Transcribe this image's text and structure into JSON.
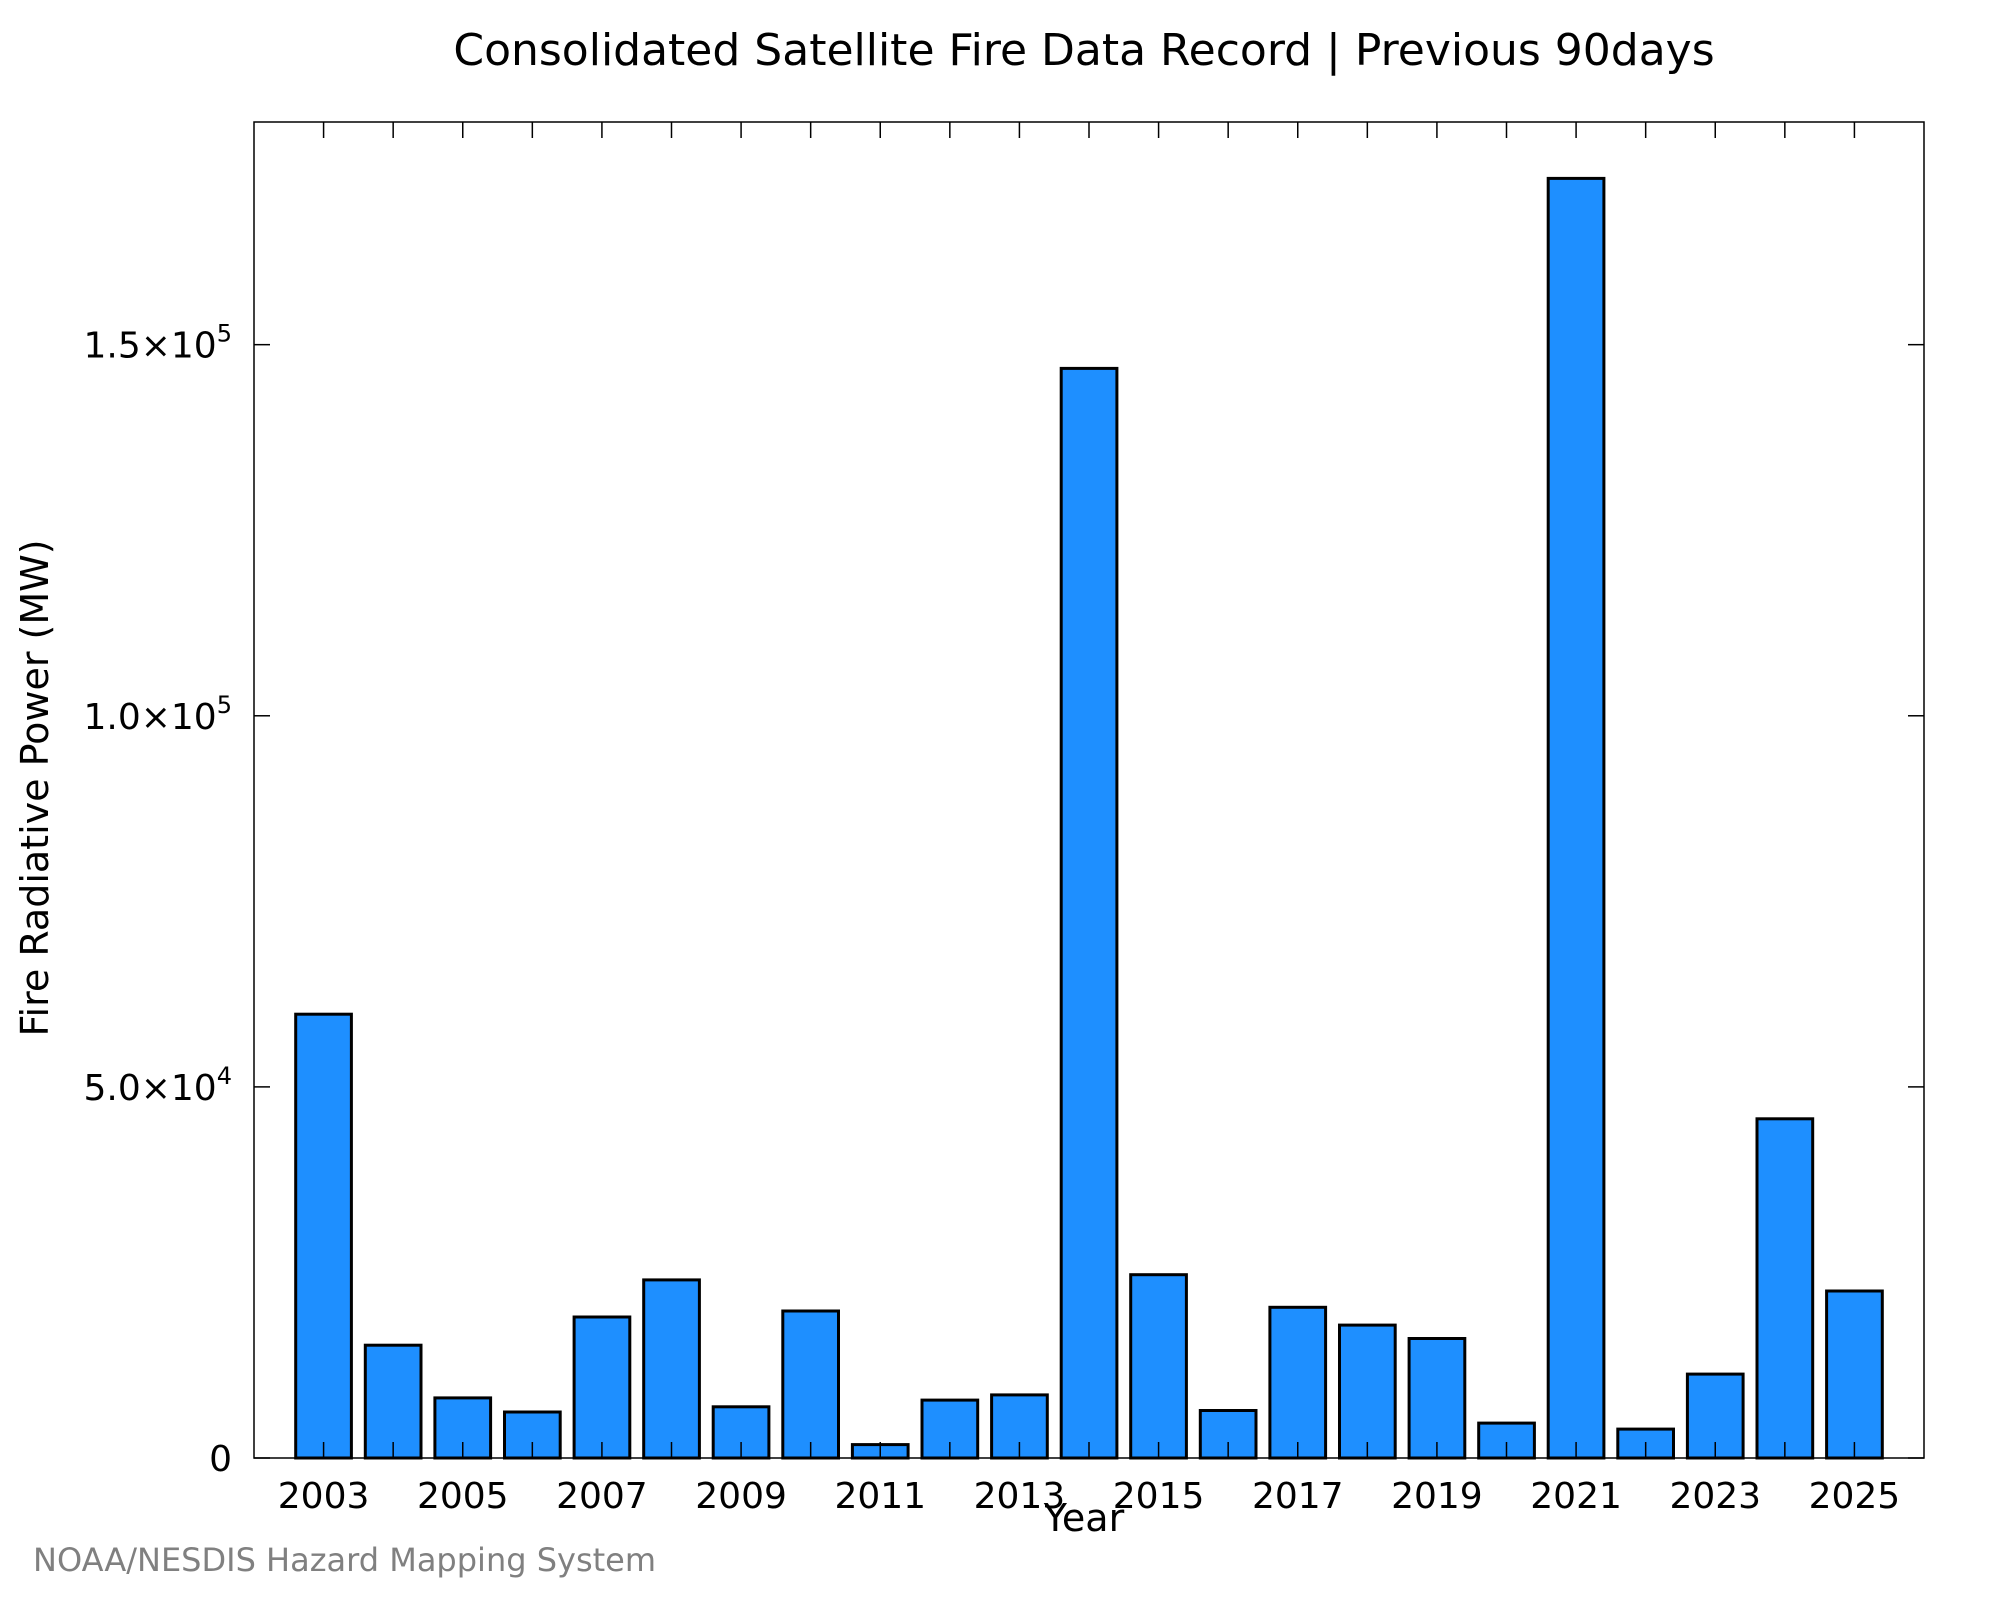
{
  "chart_data": {
    "type": "bar",
    "title": "Consolidated Satellite Fire Data Record | Previous 90days",
    "xlabel": "Year",
    "ylabel": "Fire Radiative Power (MW)",
    "categories": [
      2003,
      2004,
      2005,
      2006,
      2007,
      2008,
      2009,
      2010,
      2011,
      2012,
      2013,
      2014,
      2015,
      2016,
      2017,
      2018,
      2019,
      2020,
      2021,
      2022,
      2023,
      2024,
      2025
    ],
    "values": [
      59800,
      15200,
      8100,
      6200,
      19000,
      24000,
      6900,
      19800,
      1800,
      7800,
      8500,
      146800,
      24700,
      6400,
      20300,
      17900,
      16100,
      4700,
      172400,
      3900,
      11300,
      45700,
      22500
    ],
    "xlim": [
      2002,
      2026
    ],
    "ylim": [
      0,
      180000
    ],
    "x_tick_labels": [
      "2003",
      "2005",
      "2007",
      "2009",
      "2011",
      "2013",
      "2015",
      "2017",
      "2019",
      "2021",
      "2023",
      "2025"
    ],
    "y_ticks": [
      {
        "value": 0,
        "mantissa": "0",
        "exponent": ""
      },
      {
        "value": 50000,
        "mantissa": "5.0×10",
        "exponent": "4"
      },
      {
        "value": 100000,
        "mantissa": "1.0×10",
        "exponent": "5"
      },
      {
        "value": 150000,
        "mantissa": "1.5×10",
        "exponent": "5"
      }
    ],
    "bar_color": "#1e8fff",
    "bar_edge_color": "#000000",
    "grid": false,
    "legend": "none"
  },
  "footer": {
    "source": "NOAA/NESDIS Hazard Mapping System"
  }
}
